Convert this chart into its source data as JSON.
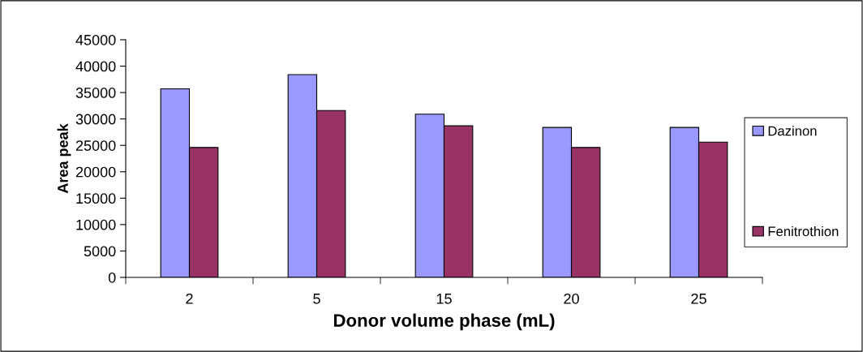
{
  "chart_data": {
    "type": "bar",
    "xlabel": "Donor volume phase (mL)",
    "ylabel": "Area peak",
    "categories": [
      "2",
      "5",
      "15",
      "20",
      "25"
    ],
    "series": [
      {
        "name": "Dazinon",
        "color": "#9999ff",
        "values": [
          35700,
          38400,
          30900,
          28400,
          28400
        ]
      },
      {
        "name": "Fenitrothion",
        "color": "#993366",
        "values": [
          24600,
          31600,
          28700,
          24600,
          25600
        ]
      }
    ],
    "ylim": [
      0,
      45000
    ],
    "yticks": [
      0,
      5000,
      10000,
      15000,
      20000,
      25000,
      30000,
      35000,
      40000,
      45000
    ],
    "legend": "right"
  }
}
